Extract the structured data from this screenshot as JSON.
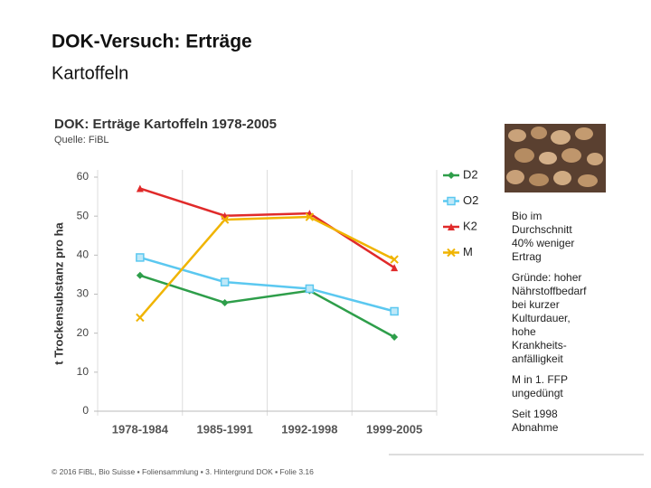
{
  "slide": {
    "title": "DOK-Versuch: Erträge",
    "subtitle": "Kartoffeln"
  },
  "chart_data": {
    "type": "line",
    "title": "DOK: Erträge Kartoffeln 1978-2005",
    "source": "Quelle: FiBL",
    "y_label": "t Trockensubstanz pro ha",
    "categories": [
      "1978-1984",
      "1985-1991",
      "1992-1998",
      "1999-2005"
    ],
    "series": [
      {
        "name": "D2",
        "color": "#2e9e4a",
        "marker": "diamond",
        "values": [
          34.8,
          27.8,
          30.9,
          19.0
        ]
      },
      {
        "name": "O2",
        "color": "#5bc8f0",
        "marker": "square",
        "values": [
          39.4,
          33.1,
          31.4,
          25.6
        ]
      },
      {
        "name": "K2",
        "color": "#e02a2a",
        "marker": "triangle",
        "values": [
          57.1,
          50.1,
          50.7,
          36.8
        ]
      },
      {
        "name": "M",
        "color": "#f0b400",
        "marker": "cross",
        "values": [
          24.0,
          49.1,
          49.8,
          38.9
        ]
      }
    ],
    "ylim": [
      0,
      60
    ],
    "yticks": [
      0,
      10,
      20,
      30,
      40,
      50,
      60
    ],
    "grid": false
  },
  "notes": [
    [
      "Bio im",
      "Durchschnitt",
      "40% weniger",
      "Ertrag"
    ],
    [
      "Gründe: hoher",
      "Nährstoffbedarf",
      "bei kurzer",
      "Kulturdauer,",
      "hohe",
      "Krankheits-",
      "anfälligkeit"
    ],
    [
      "M in 1. FFP",
      "ungedüngt"
    ],
    [
      "Seit 1998",
      "Abnahme"
    ]
  ],
  "footer": [
    "© 2016 FiBL, Bio Suisse",
    "Foliensammlung",
    "3. Hintergrund DOK",
    "Folie 3.16"
  ]
}
